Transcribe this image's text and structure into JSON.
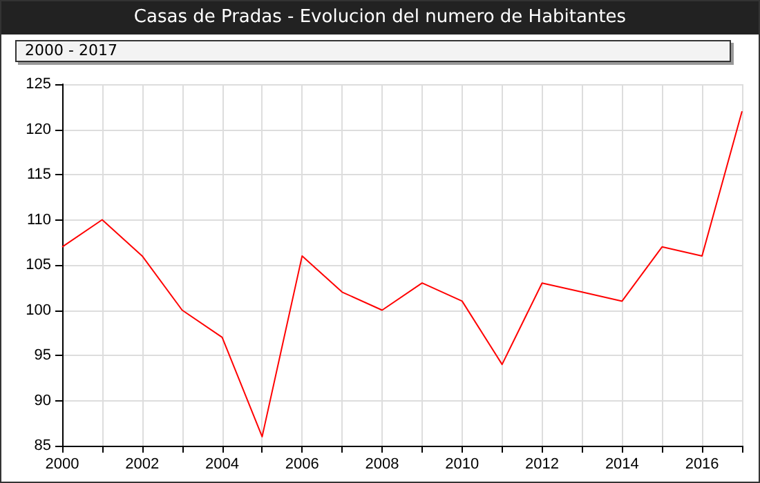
{
  "chart_data": {
    "type": "line",
    "title": "Casas de Pradas - Evolucion del numero de Habitantes",
    "subtitle": "2000 - 2017",
    "x": [
      2000,
      2001,
      2002,
      2003,
      2004,
      2005,
      2006,
      2007,
      2008,
      2009,
      2010,
      2011,
      2012,
      2013,
      2014,
      2015,
      2016,
      2017
    ],
    "series": [
      {
        "color": "#ff0000",
        "values": [
          107,
          110,
          106,
          100,
          97,
          86,
          106,
          102,
          100,
          103,
          101,
          94,
          103,
          102,
          101,
          107,
          106,
          122
        ]
      }
    ],
    "xlim": [
      2000,
      2017
    ],
    "xticks": [
      2000,
      {
        "value": 2001,
        "label": null
      },
      2002,
      {
        "value": 2003,
        "label": null
      },
      2004,
      {
        "value": 2005,
        "label": null
      },
      2006,
      {
        "value": 2007,
        "label": null
      },
      2008,
      {
        "value": 2009,
        "label": null
      },
      2010,
      {
        "value": 2011,
        "label": null
      },
      2012,
      {
        "value": 2013,
        "label": null
      },
      2014,
      {
        "value": 2015,
        "label": null
      },
      2016,
      {
        "value": 2017,
        "label": null
      }
    ],
    "ylim": [
      85,
      125
    ],
    "yticks": [
      85,
      90,
      95,
      100,
      105,
      110,
      115,
      120,
      125
    ],
    "grid": true,
    "marker": "none",
    "line_style": "solid"
  }
}
